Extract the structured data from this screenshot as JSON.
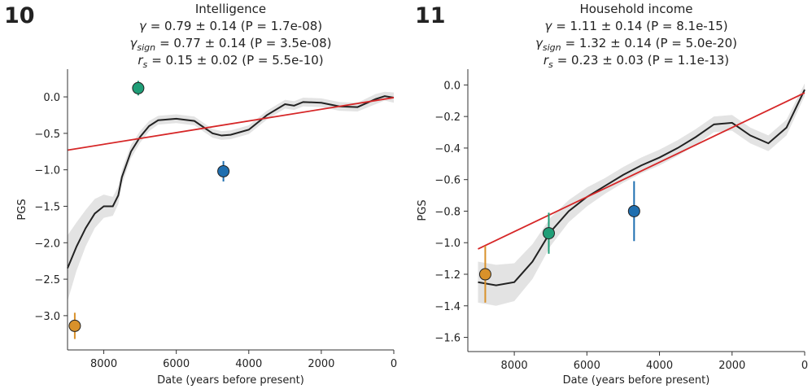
{
  "chart_data": [
    {
      "type": "line",
      "panel": "10",
      "title": "Intelligence",
      "stats": [
        {
          "symbol": "γ",
          "text": "= 0.79 ± 0.14 (P = 1.7e-08)"
        },
        {
          "symbol": "γ",
          "sub": "sign",
          "text": "= 0.77 ± 0.14 (P = 3.5e-08)"
        },
        {
          "symbol": "r",
          "sub": "s",
          "text": "= 0.15 ± 0.02 (P = 5.5e-10)"
        }
      ],
      "x_label": "Date (years before present)",
      "y_label": "PGS",
      "xlim": [
        9000,
        0
      ],
      "xticks": [
        8000,
        6000,
        4000,
        2000,
        0
      ],
      "ylim": [
        -3.47,
        0.38
      ],
      "yticks": [
        {
          "value": 0,
          "label": "0.0"
        },
        {
          "value": -0.5,
          "label": "−0.5"
        },
        {
          "value": -1,
          "label": "−1.0"
        },
        {
          "value": -1.5,
          "label": "−1.5"
        },
        {
          "value": -2,
          "label": "−2.0"
        },
        {
          "value": -2.5,
          "label": "−2.5"
        },
        {
          "value": -3,
          "label": "−3.0"
        }
      ],
      "curve": {
        "color": "#222222",
        "band_color": "#e3e3e3",
        "x": [
          9000,
          8750,
          8500,
          8250,
          8000,
          7750,
          7600,
          7500,
          7250,
          7000,
          6750,
          6500,
          6000,
          5500,
          5000,
          4750,
          4500,
          4000,
          3500,
          3000,
          2750,
          2500,
          2000,
          1500,
          1000,
          500,
          250,
          0
        ],
        "values": [
          -2.35,
          -2.05,
          -1.8,
          -1.6,
          -1.5,
          -1.5,
          -1.35,
          -1.1,
          -0.75,
          -0.55,
          -0.4,
          -0.32,
          -0.3,
          -0.33,
          -0.5,
          -0.53,
          -0.52,
          -0.45,
          -0.25,
          -0.1,
          -0.12,
          -0.07,
          -0.08,
          -0.13,
          -0.14,
          -0.03,
          0.01,
          -0.01
        ],
        "lower": [
          -2.8,
          -2.38,
          -2.05,
          -1.8,
          -1.66,
          -1.63,
          -1.47,
          -1.2,
          -0.84,
          -0.63,
          -0.47,
          -0.38,
          -0.36,
          -0.39,
          -0.56,
          -0.59,
          -0.58,
          -0.51,
          -0.31,
          -0.16,
          -0.18,
          -0.13,
          -0.14,
          -0.19,
          -0.2,
          -0.1,
          -0.05,
          -0.08
        ],
        "upper": [
          -1.9,
          -1.72,
          -1.55,
          -1.4,
          -1.34,
          -1.37,
          -1.23,
          -1.0,
          -0.66,
          -0.47,
          -0.33,
          -0.26,
          -0.24,
          -0.27,
          -0.44,
          -0.47,
          -0.46,
          -0.39,
          -0.19,
          -0.04,
          -0.06,
          -0.01,
          -0.02,
          -0.07,
          -0.08,
          0.04,
          0.07,
          0.06
        ]
      },
      "fit": {
        "color": "#d62728",
        "x": [
          9000,
          0
        ],
        "values": [
          -0.73,
          -0.01
        ]
      },
      "points": {
        "x": [
          8800,
          7050,
          4700
        ],
        "values": [
          -3.14,
          0.12,
          -1.02
        ],
        "errors": [
          0.18,
          0.1,
          0.14
        ],
        "colors": [
          "#d9912a",
          "#1f9e77",
          "#1f6fb0"
        ]
      }
    },
    {
      "type": "line",
      "panel": "11",
      "title": "Household income",
      "stats": [
        {
          "symbol": "γ",
          "text": "= 1.11 ± 0.14 (P = 8.1e-15)"
        },
        {
          "symbol": "γ",
          "sub": "sign",
          "text": "= 1.32 ± 0.14 (P = 5.0e-20)"
        },
        {
          "symbol": "r",
          "sub": "s",
          "text": "= 0.23 ± 0.03 (P = 1.1e-13)"
        }
      ],
      "x_label": "Date (years before present)",
      "y_label": "PGS",
      "xlim": [
        9280,
        0
      ],
      "xticks": [
        8000,
        6000,
        4000,
        2000,
        0
      ],
      "ylim": [
        -1.69,
        0.1
      ],
      "yticks": [
        {
          "value": 0,
          "label": "0.0"
        },
        {
          "value": -0.2,
          "label": "−0.2"
        },
        {
          "value": -0.4,
          "label": "−0.4"
        },
        {
          "value": -0.6,
          "label": "−0.6"
        },
        {
          "value": -0.8,
          "label": "−0.8"
        },
        {
          "value": -1,
          "label": "−1.0"
        },
        {
          "value": -1.2,
          "label": "−1.2"
        },
        {
          "value": -1.4,
          "label": "−1.4"
        },
        {
          "value": -1.6,
          "label": "−1.6"
        }
      ],
      "curve": {
        "color": "#222222",
        "band_color": "#e3e3e3",
        "x": [
          9000,
          8500,
          8000,
          7500,
          7000,
          6500,
          6000,
          5500,
          5000,
          4500,
          4000,
          3500,
          3000,
          2500,
          2000,
          1500,
          1000,
          500,
          0
        ],
        "values": [
          -1.25,
          -1.27,
          -1.25,
          -1.12,
          -0.93,
          -0.8,
          -0.71,
          -0.64,
          -0.57,
          -0.51,
          -0.46,
          -0.4,
          -0.33,
          -0.25,
          -0.24,
          -0.32,
          -0.37,
          -0.27,
          -0.03
        ],
        "lower": [
          -1.38,
          -1.4,
          -1.37,
          -1.23,
          -1.02,
          -0.87,
          -0.77,
          -0.69,
          -0.62,
          -0.56,
          -0.51,
          -0.45,
          -0.38,
          -0.3,
          -0.29,
          -0.37,
          -0.42,
          -0.32,
          -0.07
        ],
        "upper": [
          -1.12,
          -1.14,
          -1.13,
          -1.01,
          -0.84,
          -0.73,
          -0.65,
          -0.59,
          -0.52,
          -0.46,
          -0.41,
          -0.35,
          -0.28,
          -0.2,
          -0.19,
          -0.27,
          -0.32,
          -0.22,
          0.01
        ]
      },
      "fit": {
        "color": "#d62728",
        "x": [
          9000,
          0
        ],
        "values": [
          -1.04,
          -0.05
        ]
      },
      "points": {
        "x": [
          8800,
          7050,
          4700
        ],
        "values": [
          -1.2,
          -0.94,
          -0.8
        ],
        "errors": [
          0.18,
          0.13,
          0.19
        ],
        "colors": [
          "#d9912a",
          "#1f9e77",
          "#1f6fb0"
        ]
      }
    }
  ]
}
